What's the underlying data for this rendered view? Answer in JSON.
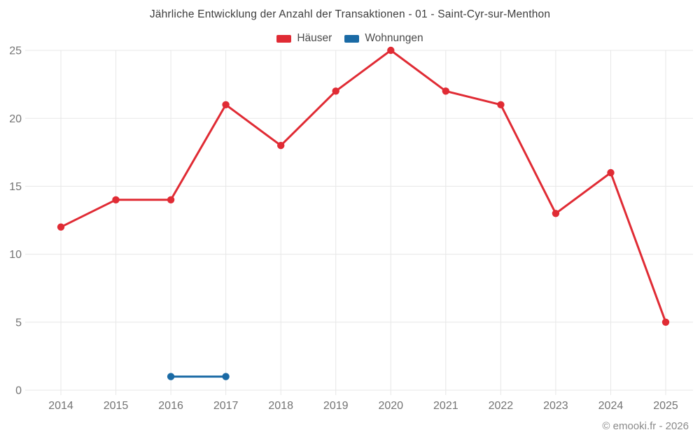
{
  "chart_data": {
    "type": "line",
    "title": "Jährliche Entwicklung der Anzahl der Transaktionen - 01 - Saint-Cyr-sur-Menthon",
    "categories": [
      "2014",
      "2015",
      "2016",
      "2017",
      "2018",
      "2019",
      "2020",
      "2021",
      "2022",
      "2023",
      "2024",
      "2025"
    ],
    "series": [
      {
        "name": "Häuser",
        "color": "#e02b34",
        "values": [
          12,
          14,
          14,
          21,
          18,
          22,
          25,
          22,
          21,
          13,
          16,
          5
        ]
      },
      {
        "name": "Wohnungen",
        "color": "#1a6aa5",
        "values": [
          null,
          null,
          1,
          1,
          null,
          null,
          null,
          null,
          null,
          null,
          null,
          null
        ]
      }
    ],
    "xlabel": "",
    "ylabel": "",
    "ylim": [
      0,
      25
    ],
    "y_ticks": [
      0,
      5,
      10,
      15,
      20,
      25
    ],
    "grid": true,
    "legend_position": "top",
    "gridline_color": "#e7e7e7",
    "axis_text_color": "#737373"
  },
  "footer": {
    "copyright": "© emooki.fr - 2026"
  }
}
